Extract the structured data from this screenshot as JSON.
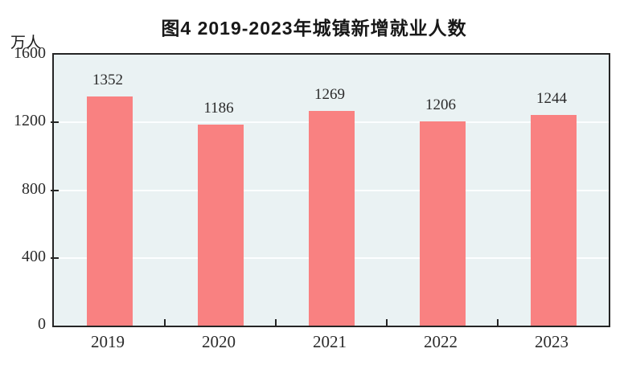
{
  "title": "图4  2019-2023年城镇新增就业人数",
  "y_unit_label": "万人",
  "colors": {
    "bar_fill": "#f98181",
    "plot_background": "#eaf2f3",
    "gridline": "#fcfeff",
    "axis": "#252525",
    "text": "#2b2b2b"
  },
  "chart_data": {
    "type": "bar",
    "title": "图4  2019-2023年城镇新增就业人数",
    "categories": [
      "2019",
      "2020",
      "2021",
      "2022",
      "2023"
    ],
    "values": [
      1352,
      1186,
      1269,
      1206,
      1244
    ],
    "xlabel": "",
    "ylabel": "万人",
    "ylim": [
      0,
      1600
    ],
    "yticks": [
      0,
      400,
      800,
      1200,
      1600
    ],
    "grid": "horizontal white gridlines at 400, 800, 1200",
    "legend_position": "none",
    "data_labels": true
  }
}
